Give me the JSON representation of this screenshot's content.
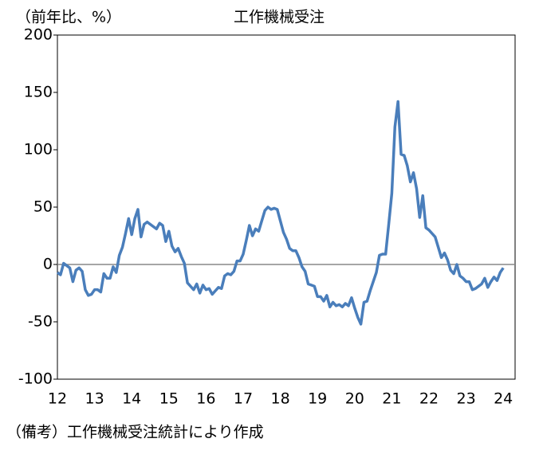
{
  "chart_data": {
    "type": "line",
    "title": "工作機械受注",
    "y_label": "（前年比、%）",
    "note": "（備考）工作機械受注統計により作成",
    "categories": [
      "12",
      null,
      null,
      null,
      null,
      null,
      null,
      null,
      null,
      null,
      null,
      null,
      "13",
      null,
      null,
      null,
      null,
      null,
      null,
      null,
      null,
      null,
      null,
      null,
      "14",
      null,
      null,
      null,
      null,
      null,
      null,
      null,
      null,
      null,
      null,
      null,
      "15",
      null,
      null,
      null,
      null,
      null,
      null,
      null,
      null,
      null,
      null,
      null,
      "16",
      null,
      null,
      null,
      null,
      null,
      null,
      null,
      null,
      null,
      null,
      null,
      "17",
      null,
      null,
      null,
      null,
      null,
      null,
      null,
      null,
      null,
      null,
      null,
      "18",
      null,
      null,
      null,
      null,
      null,
      null,
      null,
      null,
      null,
      null,
      null,
      "19",
      null,
      null,
      null,
      null,
      null,
      null,
      null,
      null,
      null,
      null,
      null,
      "20",
      null,
      null,
      null,
      null,
      null,
      null,
      null,
      null,
      null,
      null,
      null,
      "21",
      null,
      null,
      null,
      null,
      null,
      null,
      null,
      null,
      null,
      null,
      null,
      "22",
      null,
      null,
      null,
      null,
      null,
      null,
      null,
      null,
      null,
      null,
      null,
      "23",
      null,
      null,
      null,
      null,
      null,
      null,
      null,
      null,
      null,
      null,
      null,
      "24"
    ],
    "series": [
      {
        "name": "工作機械受注",
        "color": "#4a7ebb",
        "values": [
          -7,
          -9,
          1,
          -1,
          -3,
          -15,
          -5,
          -3,
          -6,
          -22,
          -27,
          -26,
          -22,
          -22,
          -24,
          -8,
          -12,
          -12,
          -2,
          -7,
          8,
          15,
          27,
          40,
          26,
          40,
          48,
          24,
          35,
          37,
          35,
          33,
          31,
          36,
          34,
          20,
          29,
          16,
          11,
          14,
          7,
          1,
          -16,
          -19,
          -22,
          -17,
          -25,
          -18,
          -22,
          -21,
          -26,
          -23,
          -20,
          -21,
          -10,
          -8,
          -9,
          -6,
          3,
          3,
          9,
          21,
          34,
          25,
          31,
          29,
          38,
          47,
          50,
          48,
          49,
          48,
          38,
          28,
          22,
          14,
          12,
          12,
          6,
          -2,
          -6,
          -17,
          -18,
          -19,
          -28,
          -28,
          -32,
          -27,
          -37,
          -33,
          -36,
          -35,
          -37,
          -34,
          -36,
          -29,
          -38,
          -46,
          -52,
          -33,
          -32,
          -23,
          -15,
          -7,
          8,
          9,
          9,
          35,
          62,
          120,
          142,
          96,
          95,
          86,
          72,
          80,
          66,
          41,
          60,
          32,
          30,
          27,
          24,
          15,
          6,
          10,
          4,
          -5,
          -8,
          0,
          -10,
          -12,
          -15,
          -15,
          -22,
          -21,
          -19,
          -17,
          -12,
          -20,
          -15,
          -11,
          -14,
          -7,
          -3
        ]
      }
    ],
    "ylim": [
      -100,
      200
    ],
    "yticks": [
      -100,
      -50,
      0,
      50,
      100,
      150,
      200
    ],
    "zero_line": true
  }
}
